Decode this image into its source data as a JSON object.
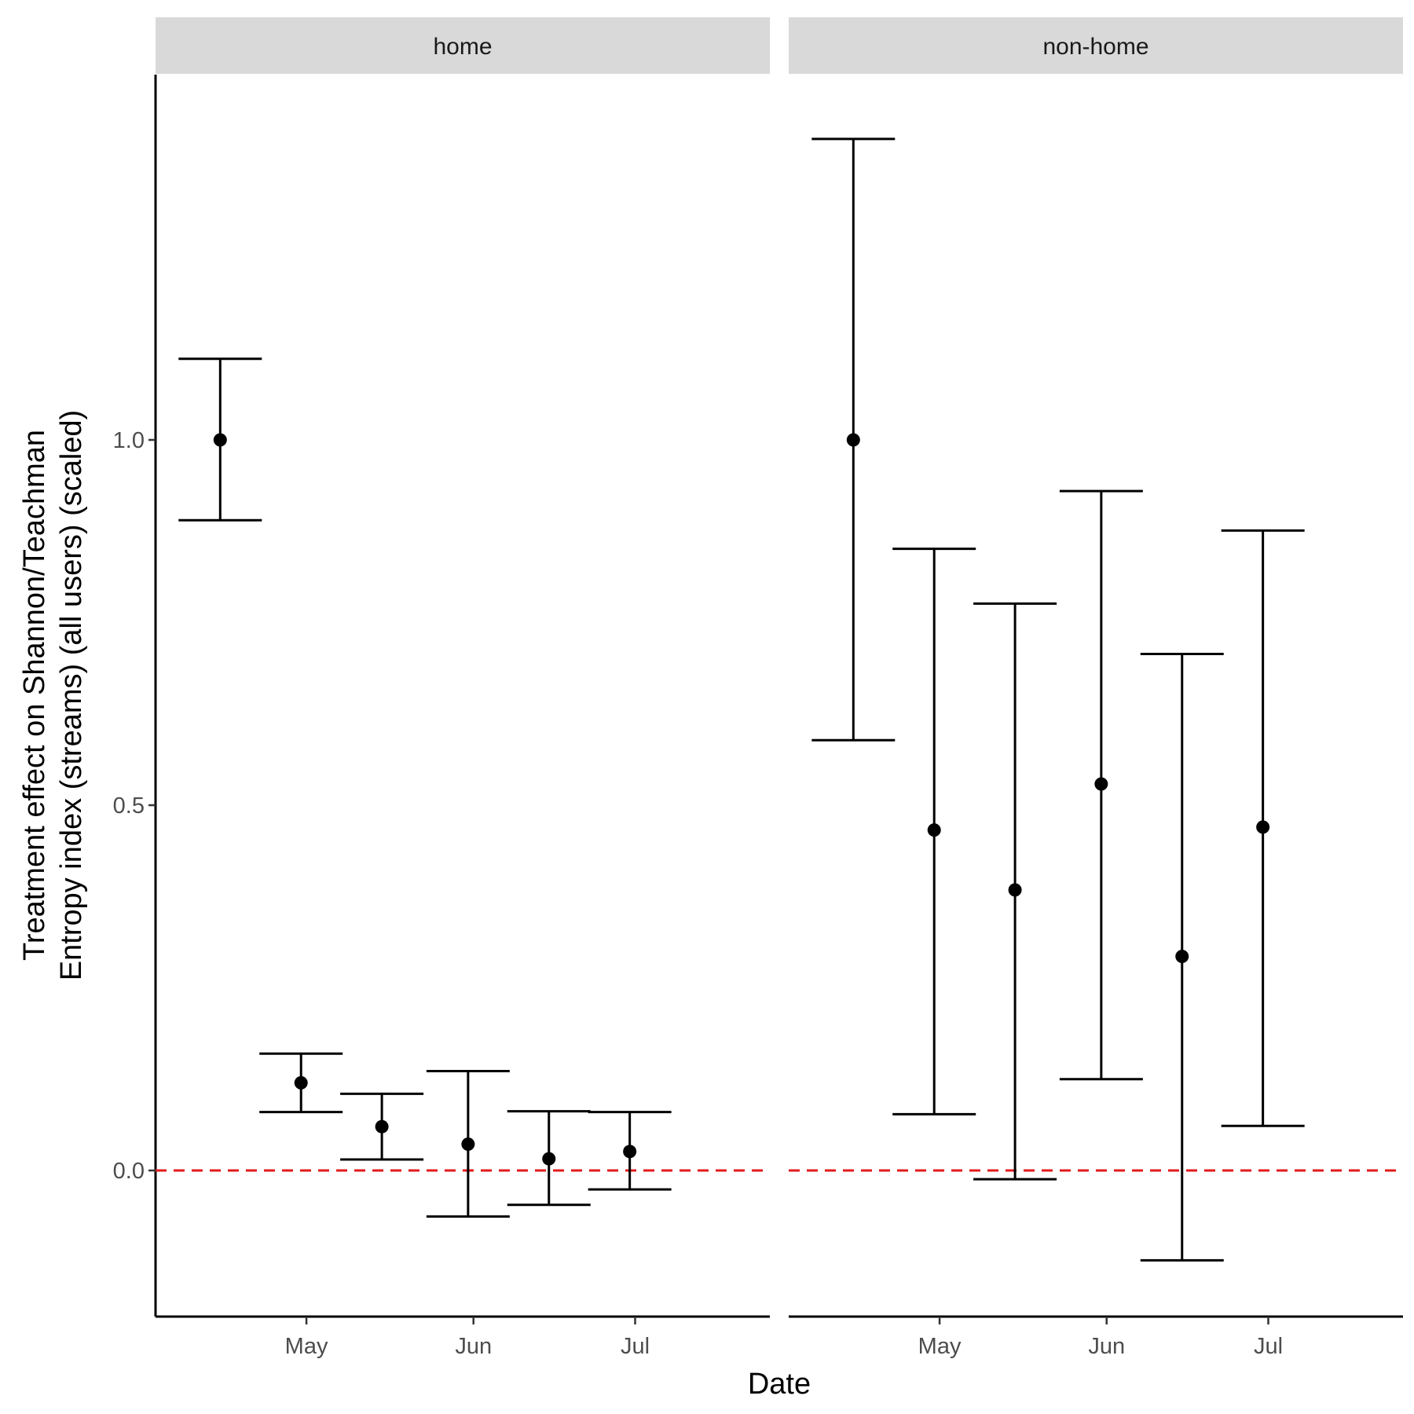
{
  "chart_data": {
    "type": "errorbar",
    "xlabel": "Date",
    "ylabel_lines": [
      "Treatment effect on Shannon/Teachman",
      "Entropy index (streams) (all users) (scaled)"
    ],
    "ylim": [
      -0.2,
      1.5
    ],
    "y_ticks": [
      0.0,
      0.5,
      1.0
    ],
    "y_tick_labels": [
      "0.0",
      "0.5",
      "1.0"
    ],
    "x_range": [
      "2023-04-03",
      "2023-07-26"
    ],
    "x_ticks": [
      "2023-05-01",
      "2023-06-01",
      "2023-07-01"
    ],
    "x_tick_labels": [
      "May",
      "Jun",
      "Jul"
    ],
    "reference_line": {
      "y": 0,
      "color": "#e31a1c",
      "style": "dashed"
    },
    "grid": false,
    "point_color": "#000000",
    "panels": [
      {
        "label": "home",
        "points": [
          {
            "x": "2023-04-15",
            "y": 1.0,
            "ymin": 0.89,
            "ymax": 1.111
          },
          {
            "x": "2023-04-30",
            "y": 0.12,
            "ymin": 0.08,
            "ymax": 0.16
          },
          {
            "x": "2023-05-15",
            "y": 0.06,
            "ymin": 0.015,
            "ymax": 0.105
          },
          {
            "x": "2023-05-31",
            "y": 0.036,
            "ymin": -0.063,
            "ymax": 0.136
          },
          {
            "x": "2023-06-15",
            "y": 0.016,
            "ymin": -0.047,
            "ymax": 0.081
          },
          {
            "x": "2023-06-30",
            "y": 0.026,
            "ymin": -0.026,
            "ymax": 0.08
          }
        ]
      },
      {
        "label": "non-home",
        "points": [
          {
            "x": "2023-04-15",
            "y": 1.0,
            "ymin": 0.589,
            "ymax": 1.412
          },
          {
            "x": "2023-04-30",
            "y": 0.466,
            "ymin": 0.077,
            "ymax": 0.851
          },
          {
            "x": "2023-05-15",
            "y": 0.384,
            "ymin": -0.012,
            "ymax": 0.776
          },
          {
            "x": "2023-05-31",
            "y": 0.529,
            "ymin": 0.125,
            "ymax": 0.93
          },
          {
            "x": "2023-06-15",
            "y": 0.293,
            "ymin": -0.123,
            "ymax": 0.707
          },
          {
            "x": "2023-06-30",
            "y": 0.47,
            "ymin": 0.061,
            "ymax": 0.876
          }
        ]
      }
    ]
  }
}
